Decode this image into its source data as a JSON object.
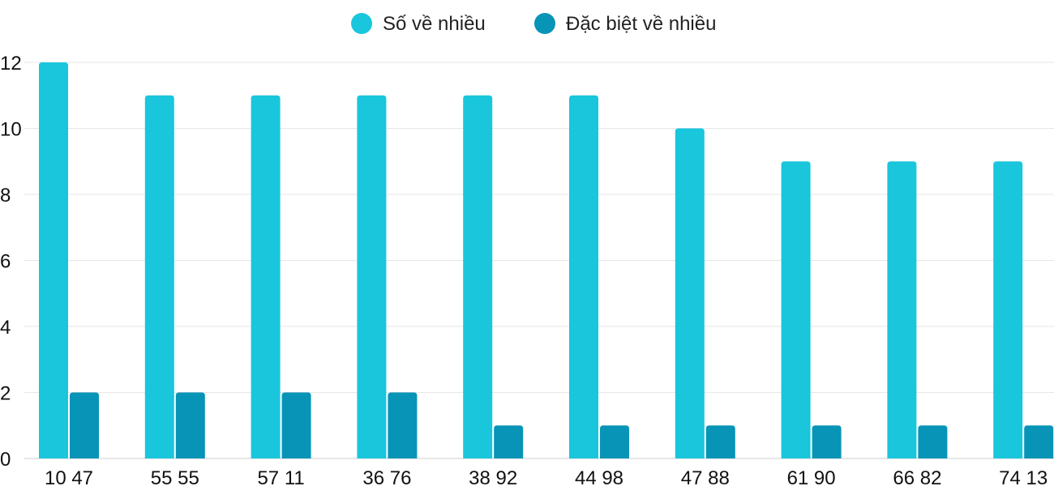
{
  "chart_data": {
    "type": "bar",
    "categories": [
      "10 47",
      "55 55",
      "57 11",
      "36 76",
      "38 92",
      "44 98",
      "47 88",
      "61 90",
      "66 82",
      "74 13"
    ],
    "series": [
      {
        "name": "Số về nhiều",
        "color": "#19c6dc",
        "values": [
          12,
          11,
          11,
          11,
          11,
          11,
          10,
          9,
          9,
          9
        ]
      },
      {
        "name": "Đặc biệt về nhiều",
        "color": "#0894b6",
        "values": [
          2,
          2,
          2,
          2,
          1,
          1,
          1,
          1,
          1,
          1
        ]
      }
    ],
    "yticks": [
      "0",
      "2",
      "4",
      "6",
      "8",
      "10",
      "12"
    ],
    "ylim": [
      0,
      12
    ],
    "grid": true,
    "legend_position": "top-center"
  }
}
